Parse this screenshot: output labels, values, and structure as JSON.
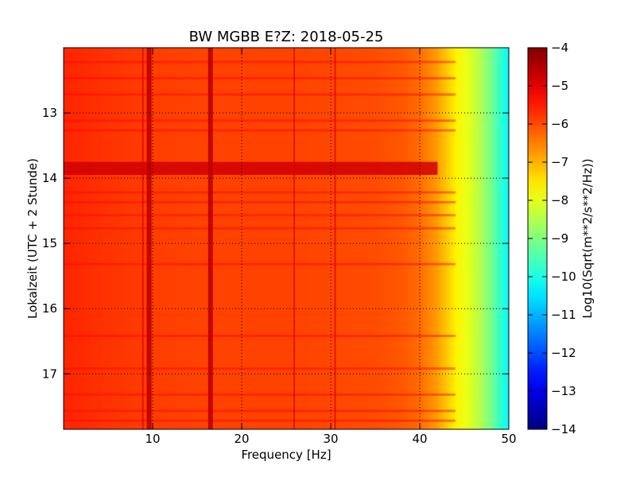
{
  "chart_data": {
    "type": "heatmap",
    "title": "BW MGBB E?Z: 2018-05-25",
    "xlabel": "Frequency [Hz]",
    "ylabel": "Lokalzeit (UTC + 2 Stunde)",
    "xlim": [
      0,
      50
    ],
    "ylim": [
      17.85,
      12.0
    ],
    "x_ticks": [
      10,
      20,
      30,
      40,
      50
    ],
    "y_ticks": [
      13,
      14,
      15,
      16,
      17
    ],
    "grid": true,
    "colorbar": {
      "label": "Log10(Sqrt(m**2/s**2/Hz))",
      "range": [
        -14,
        -4
      ],
      "ticks": [
        -4,
        -5,
        -6,
        -7,
        -8,
        -9,
        -10,
        -11,
        -12,
        -13,
        -14
      ],
      "colormap": "jet"
    },
    "spectral_profile": {
      "frequency_hz": [
        0,
        5,
        10,
        15,
        20,
        25,
        30,
        35,
        38,
        40,
        42,
        43,
        44,
        45,
        46,
        47,
        48,
        49,
        50
      ],
      "log_amplitude": [
        -5.6,
        -5.75,
        -5.85,
        -5.9,
        -5.9,
        -5.9,
        -5.95,
        -6.0,
        -6.1,
        -6.3,
        -6.8,
        -7.2,
        -7.6,
        -7.9,
        -8.2,
        -8.6,
        -9.1,
        -9.7,
        -10.3
      ]
    },
    "peak_lines_hz": [
      8.9,
      9.6,
      16.5,
      25.9,
      30.5
    ],
    "noisy_time_band": {
      "from": 13.75,
      "to": 13.95,
      "log_amplitude": -4.8
    }
  }
}
